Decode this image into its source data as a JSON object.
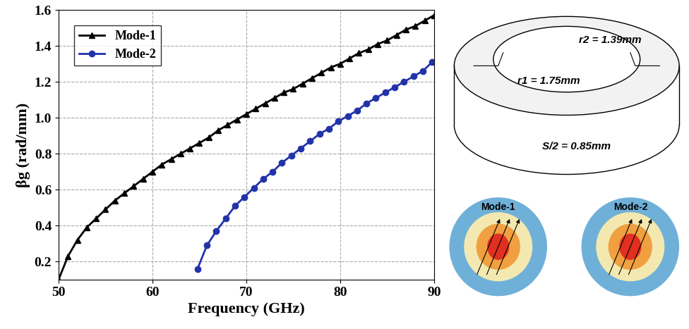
{
  "chart_data": {
    "type": "line",
    "x_label": "Frequency (GHz)",
    "y_label": "βg (rad/mm)",
    "xlim": [
      50,
      90
    ],
    "xticks": [
      50,
      60,
      70,
      80,
      90
    ],
    "ylim": [
      0.1,
      1.6
    ],
    "yticks": [
      0.2,
      0.4,
      0.6,
      0.8,
      1.0,
      1.2,
      1.4,
      1.6
    ],
    "grid": true,
    "legend": "upper left",
    "series": [
      {
        "name": "Mode-1",
        "color": "#000000",
        "marker": "^",
        "line_style": "solid",
        "x": [
          50,
          51,
          52,
          53,
          54,
          55,
          56,
          57,
          58,
          59,
          60,
          61,
          62,
          63,
          64,
          65,
          66,
          67,
          68,
          69,
          70,
          71,
          72,
          73,
          74,
          75,
          76,
          77,
          78,
          79,
          80,
          81,
          82,
          83,
          84,
          85,
          86,
          87,
          88,
          89,
          90
        ],
        "values": [
          0.1,
          0.23,
          0.32,
          0.39,
          0.44,
          0.49,
          0.54,
          0.58,
          0.62,
          0.66,
          0.7,
          0.74,
          0.77,
          0.8,
          0.83,
          0.86,
          0.89,
          0.93,
          0.96,
          0.99,
          1.02,
          1.05,
          1.08,
          1.11,
          1.14,
          1.16,
          1.19,
          1.22,
          1.25,
          1.28,
          1.3,
          1.33,
          1.36,
          1.38,
          1.41,
          1.43,
          1.46,
          1.49,
          1.51,
          1.54,
          1.57
        ]
      },
      {
        "name": "Mode-2",
        "color": "#2233aa",
        "marker": "o",
        "line_style": "solid",
        "x": [
          64.8,
          65.8,
          66.8,
          67.8,
          68.8,
          69.8,
          70.8,
          71.8,
          72.8,
          73.8,
          74.8,
          75.8,
          76.8,
          77.8,
          78.8,
          79.8,
          80.8,
          81.8,
          82.8,
          83.8,
          84.8,
          85.8,
          86.8,
          87.8,
          88.8,
          89.8
        ],
        "values": [
          0.16,
          0.29,
          0.37,
          0.44,
          0.51,
          0.56,
          0.61,
          0.66,
          0.7,
          0.75,
          0.79,
          0.83,
          0.87,
          0.91,
          0.94,
          0.98,
          1.01,
          1.04,
          1.08,
          1.11,
          1.14,
          1.17,
          1.2,
          1.23,
          1.26,
          1.31
        ]
      }
    ]
  },
  "diagram": {
    "r2_label": "r2 = 1.39mm",
    "r1_label": "r1 = 1.75mm",
    "height_label": "S/2 = 0.85mm",
    "field_panels": [
      "Mode-1",
      "Mode-2"
    ]
  }
}
